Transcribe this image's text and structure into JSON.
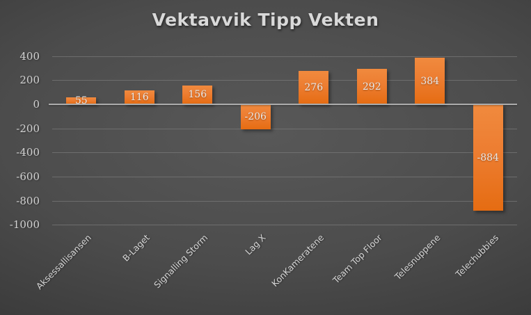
{
  "chart_data": {
    "type": "bar",
    "title": "Vektavvik Tipp Vekten",
    "categories": [
      "Aksessallisansen",
      "B-Laget",
      "Signalling Storm",
      "Lag X",
      "KonKameratene",
      "Team Top Floor",
      "Telesnuppene",
      "Telechubbies"
    ],
    "values": [
      55,
      116,
      156,
      -206,
      276,
      292,
      384,
      -884
    ],
    "data_labels": [
      "55",
      "116",
      "156",
      "-206",
      "276",
      "292",
      "384",
      "-884"
    ],
    "xlabel": "",
    "ylabel": "",
    "ylim": [
      -1000,
      400
    ],
    "y_ticks": [
      400,
      200,
      0,
      -200,
      -400,
      -600,
      -800,
      -1000
    ],
    "grid": true,
    "legend": "none",
    "x_label_rotation_deg": 45,
    "data_label_position": "center",
    "colors": {
      "bar_base": "#ED7D31",
      "bar_gradient_top": "#F08A3E",
      "bar_gradient_bottom": "#E56C12",
      "data_label": "#E8E8E8",
      "axis_tick_label": "#D2D2D2",
      "category_label": "#D6D6D6",
      "zero_axis_line": "#ACACAC",
      "gridline": "#787878",
      "title": "#D9D9D9",
      "background_center": "#585858",
      "background_edge": "#242424"
    }
  }
}
